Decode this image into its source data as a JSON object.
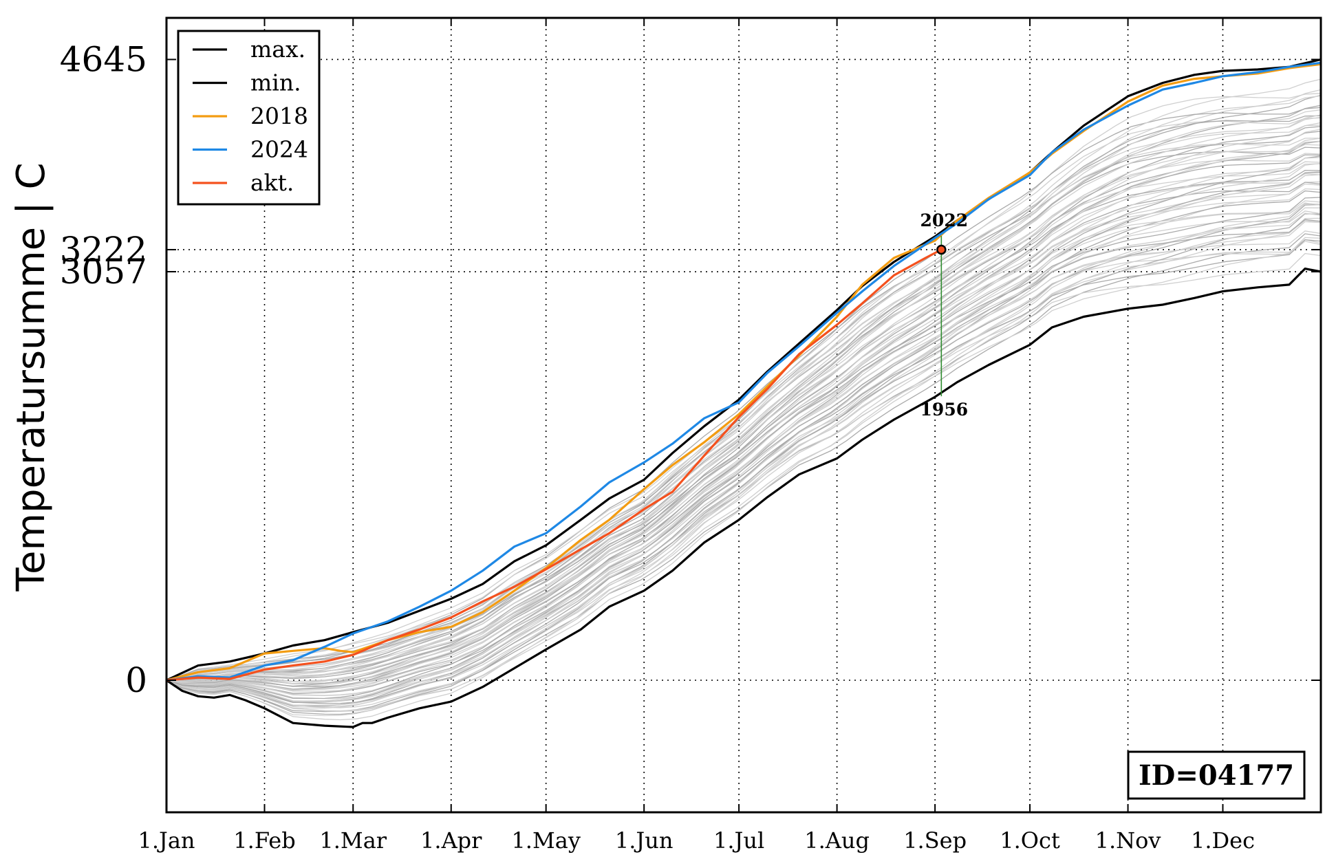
{
  "chart_data": {
    "type": "line",
    "title": "",
    "ylabel": "Temperatursumme | C",
    "xlabel": "",
    "x_ticks": [
      "1.Jan",
      "1.Feb",
      "1.Mar",
      "1.Apr",
      "1.May",
      "1.Jun",
      "1.Jul",
      "1.Aug",
      "1.Sep",
      "1.Oct",
      "1.Nov",
      "1.Dec"
    ],
    "x_tick_days": [
      0,
      31,
      59,
      90,
      120,
      151,
      181,
      212,
      243,
      273,
      304,
      334
    ],
    "xlim": [
      0,
      365
    ],
    "ylim": [
      -1000,
      5000
    ],
    "y_ticks": [
      0,
      3057,
      3222,
      4645
    ],
    "y_tick_labels": [
      "0",
      "3057",
      "3222",
      "4645"
    ],
    "grid": true,
    "legend_position": "top-left",
    "legend": [
      {
        "name": "max.",
        "color": "#000000"
      },
      {
        "name": "min.",
        "color": "#000000"
      },
      {
        "name": "2018",
        "color": "#f39c12"
      },
      {
        "name": "2024",
        "color": "#1e88e5"
      },
      {
        "name": "akt.",
        "color": "#f4511e"
      }
    ],
    "series": [
      {
        "name": "max.",
        "color": "#000000",
        "x": [
          0,
          10,
          20,
          31,
          40,
          45,
          50,
          59,
          70,
          80,
          90,
          100,
          110,
          120,
          131,
          140,
          151,
          160,
          170,
          181,
          190,
          200,
          212,
          220,
          230,
          243,
          250,
          260,
          273,
          280,
          290,
          304,
          315,
          325,
          334,
          345,
          355,
          365
        ],
        "y": [
          0,
          110,
          140,
          200,
          260,
          280,
          300,
          360,
          430,
          520,
          610,
          720,
          890,
          1010,
          1200,
          1360,
          1500,
          1700,
          1900,
          2100,
          2310,
          2520,
          2770,
          2950,
          3130,
          3320,
          3440,
          3600,
          3800,
          3950,
          4150,
          4370,
          4470,
          4530,
          4560,
          4570,
          4590,
          4645
        ]
      },
      {
        "name": "min.",
        "color": "#000000",
        "x": [
          0,
          5,
          10,
          15,
          20,
          25,
          31,
          40,
          50,
          59,
          62,
          65,
          70,
          80,
          90,
          100,
          110,
          120,
          131,
          140,
          151,
          160,
          170,
          181,
          190,
          200,
          212,
          220,
          230,
          243,
          250,
          260,
          273,
          280,
          290,
          304,
          315,
          325,
          334,
          345,
          355,
          360,
          365
        ],
        "y": [
          0,
          -80,
          -120,
          -130,
          -110,
          -150,
          -210,
          -320,
          -340,
          -350,
          -320,
          -320,
          -280,
          -210,
          -160,
          -50,
          90,
          230,
          380,
          550,
          670,
          820,
          1030,
          1200,
          1370,
          1540,
          1660,
          1800,
          1950,
          2120,
          2230,
          2360,
          2510,
          2640,
          2720,
          2780,
          2810,
          2860,
          2910,
          2940,
          2960,
          3080,
          3057
        ]
      },
      {
        "name": "2018",
        "color": "#f39c12",
        "x": [
          0,
          10,
          20,
          31,
          40,
          50,
          55,
          59,
          70,
          80,
          90,
          100,
          110,
          120,
          131,
          140,
          151,
          160,
          170,
          181,
          190,
          200,
          212,
          220,
          230,
          243,
          250,
          260,
          273,
          280,
          290,
          304,
          315,
          325,
          334,
          345,
          355,
          365
        ],
        "y": [
          0,
          60,
          90,
          200,
          220,
          240,
          220,
          210,
          300,
          360,
          400,
          510,
          670,
          840,
          1050,
          1200,
          1430,
          1610,
          1780,
          1990,
          2200,
          2430,
          2720,
          2960,
          3160,
          3290,
          3440,
          3610,
          3800,
          3940,
          4110,
          4330,
          4450,
          4500,
          4520,
          4540,
          4580,
          4610
        ]
      },
      {
        "name": "2024",
        "color": "#1e88e5",
        "x": [
          0,
          10,
          20,
          31,
          40,
          50,
          59,
          70,
          80,
          90,
          100,
          110,
          120,
          131,
          140,
          151,
          160,
          170,
          181,
          190,
          200,
          212,
          220,
          230,
          243,
          250,
          260,
          273,
          280,
          290,
          304,
          315,
          325,
          334,
          345,
          355,
          365
        ],
        "y": [
          0,
          30,
          20,
          110,
          150,
          250,
          350,
          440,
          550,
          670,
          820,
          1000,
          1100,
          1300,
          1480,
          1630,
          1770,
          1960,
          2080,
          2300,
          2500,
          2750,
          2910,
          3100,
          3310,
          3420,
          3600,
          3780,
          3950,
          4120,
          4300,
          4420,
          4470,
          4520,
          4550,
          4590,
          4620
        ]
      },
      {
        "name": "akt.",
        "color": "#f4511e",
        "x": [
          0,
          10,
          20,
          31,
          40,
          50,
          59,
          70,
          80,
          90,
          100,
          110,
          120,
          131,
          140,
          151,
          160,
          170,
          181,
          190,
          200,
          212,
          220,
          230,
          240,
          245
        ],
        "y": [
          0,
          20,
          10,
          80,
          110,
          140,
          190,
          300,
          380,
          470,
          590,
          700,
          830,
          980,
          1100,
          1280,
          1410,
          1680,
          1970,
          2180,
          2440,
          2660,
          2820,
          3030,
          3160,
          3222
        ]
      }
    ],
    "marker": {
      "x": 245,
      "y": 3222,
      "color": "#f4511e"
    },
    "annotations": [
      {
        "text": "2022",
        "x": 245,
        "y": 3325
      },
      {
        "text": "1956",
        "x": 245,
        "y": 2125
      }
    ],
    "id_box": "ID=04177"
  }
}
